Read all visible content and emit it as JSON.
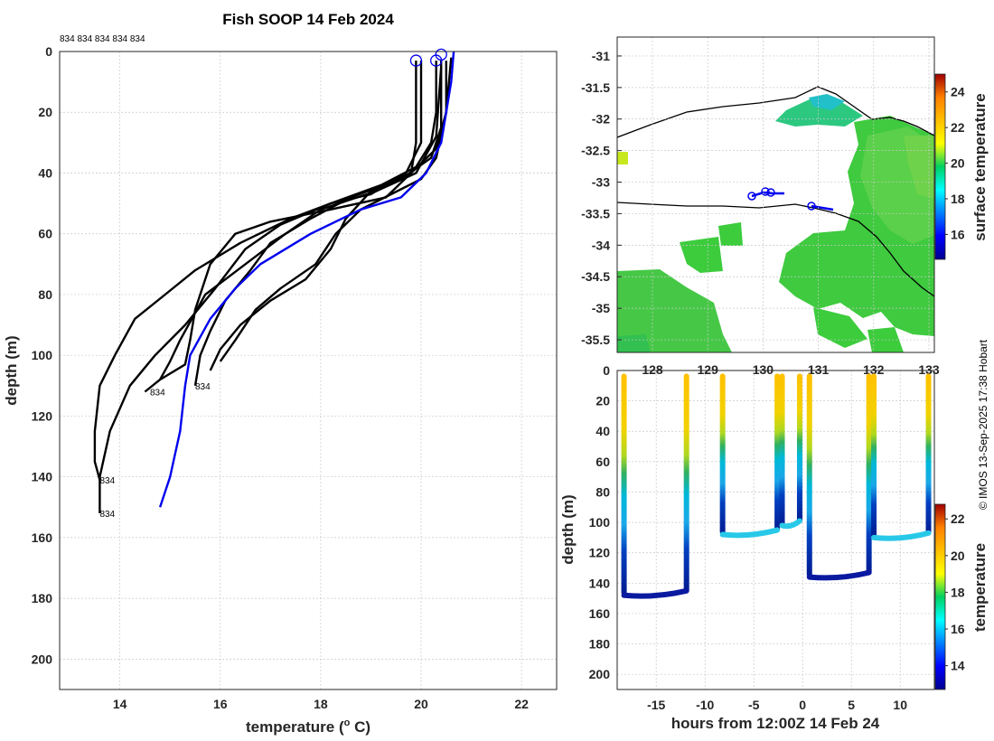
{
  "chart_data": [
    {
      "type": "line",
      "title": "Fish SOOP 14 Feb 2024",
      "xlabel": "temperature (",
      "xlabel_sup": "o",
      "xlabel_end": " C)",
      "ylabel": "depth (m)",
      "xlim": [
        12.8,
        22.7
      ],
      "ylim": [
        0,
        210
      ],
      "xticks": [
        14,
        16,
        18,
        20,
        22
      ],
      "yticks": [
        0,
        20,
        40,
        60,
        80,
        100,
        120,
        140,
        160,
        180,
        200
      ],
      "top_label": "834 834 834 834 834",
      "profile_label": "834",
      "profile_label_positions": [
        [
          14.6,
          112
        ],
        [
          15.5,
          110
        ],
        [
          13.6,
          141
        ],
        [
          13.6,
          152
        ]
      ],
      "markers": [
        [
          19.9,
          3
        ],
        [
          20.3,
          3
        ],
        [
          20.4,
          1
        ]
      ],
      "series": [
        {
          "name": "profile-1",
          "color": "#000000",
          "points": [
            [
              19.9,
              3
            ],
            [
              19.9,
              30
            ],
            [
              19.8,
              40
            ],
            [
              19.3,
              48
            ],
            [
              18.2,
              52
            ],
            [
              17.0,
              56
            ],
            [
              16.3,
              60
            ],
            [
              15.8,
              70
            ],
            [
              15.5,
              85
            ],
            [
              15.4,
              95
            ],
            [
              15.3,
              103
            ],
            [
              14.8,
              108
            ],
            [
              14.5,
              112
            ]
          ]
        },
        {
          "name": "profile-2",
          "color": "#000000",
          "points": [
            [
              20.0,
              3
            ],
            [
              20.0,
              30
            ],
            [
              19.7,
              40
            ],
            [
              19.0,
              47
            ],
            [
              18.2,
              50
            ],
            [
              17.4,
              55
            ],
            [
              16.4,
              63
            ],
            [
              15.5,
              72
            ],
            [
              14.9,
              80
            ],
            [
              14.3,
              88
            ],
            [
              13.9,
              100
            ],
            [
              13.6,
              110
            ],
            [
              13.5,
              125
            ],
            [
              13.5,
              135
            ],
            [
              13.6,
              141
            ]
          ]
        },
        {
          "name": "profile-3",
          "color": "#000000",
          "points": [
            [
              20.3,
              3
            ],
            [
              20.3,
              20
            ],
            [
              20.2,
              30
            ],
            [
              19.9,
              38
            ],
            [
              19.2,
              44
            ],
            [
              18.2,
              50
            ],
            [
              17.2,
              57
            ],
            [
              16.5,
              65
            ],
            [
              15.9,
              78
            ],
            [
              15.3,
              90
            ],
            [
              14.7,
              100
            ],
            [
              14.2,
              110
            ],
            [
              13.8,
              125
            ],
            [
              13.6,
              140
            ],
            [
              13.6,
              152
            ]
          ]
        },
        {
          "name": "profile-4",
          "color": "#000000",
          "points": [
            [
              20.4,
              3
            ],
            [
              20.4,
              25
            ],
            [
              20.2,
              35
            ],
            [
              19.6,
              42
            ],
            [
              18.6,
              48
            ],
            [
              17.8,
              55
            ],
            [
              17.0,
              63
            ],
            [
              16.6,
              72
            ],
            [
              16.1,
              82
            ],
            [
              15.8,
              92
            ],
            [
              15.6,
              100
            ],
            [
              15.5,
              110
            ]
          ]
        },
        {
          "name": "profile-5",
          "color": "#000000",
          "points": [
            [
              20.5,
              3
            ],
            [
              20.5,
              20
            ],
            [
              20.3,
              32
            ],
            [
              19.8,
              40
            ],
            [
              19.0,
              46
            ],
            [
              18.5,
              55
            ],
            [
              18.2,
              65
            ],
            [
              17.7,
              75
            ],
            [
              17.0,
              82
            ],
            [
              16.4,
              90
            ],
            [
              16.0,
              98
            ],
            [
              15.8,
              105
            ]
          ]
        },
        {
          "name": "profile-6",
          "color": "#000000",
          "points": [
            [
              20.6,
              2
            ],
            [
              20.5,
              20
            ],
            [
              20.3,
              35
            ],
            [
              20.0,
              42
            ],
            [
              19.4,
              47
            ],
            [
              18.8,
              52
            ],
            [
              18.3,
              60
            ],
            [
              17.9,
              70
            ],
            [
              17.2,
              78
            ],
            [
              16.7,
              85
            ],
            [
              16.3,
              95
            ],
            [
              16.0,
              102
            ]
          ]
        },
        {
          "name": "profile-7",
          "color": "#000000",
          "points": [
            [
              20.4,
              5
            ],
            [
              20.3,
              28
            ],
            [
              19.9,
              40
            ],
            [
              19.1,
              46
            ],
            [
              18.0,
              52
            ],
            [
              17.3,
              60
            ],
            [
              16.5,
              70
            ],
            [
              15.7,
              80
            ],
            [
              15.2,
              95
            ],
            [
              15.0,
              102
            ],
            [
              14.8,
              108
            ]
          ]
        },
        {
          "name": "mean",
          "color": "#0000ee",
          "points": [
            [
              20.65,
              0
            ],
            [
              20.6,
              10
            ],
            [
              20.5,
              20
            ],
            [
              20.4,
              30
            ],
            [
              20.1,
              40
            ],
            [
              19.6,
              48
            ],
            [
              18.8,
              52
            ],
            [
              17.8,
              60
            ],
            [
              16.8,
              70
            ],
            [
              16.3,
              78
            ],
            [
              15.8,
              88
            ],
            [
              15.4,
              100
            ],
            [
              15.3,
              110
            ],
            [
              15.2,
              125
            ],
            [
              15.0,
              140
            ],
            [
              14.8,
              150
            ]
          ]
        }
      ]
    },
    {
      "type": "heatmap",
      "title": "",
      "ylim": [
        -35.7,
        -30.7
      ],
      "yticks": [
        -31,
        -31.5,
        -32,
        -32.5,
        -33,
        -33.5,
        -34,
        -34.5,
        -35,
        -35.5
      ],
      "xticks": [
        "128",
        "129",
        "130",
        "131",
        "132",
        "133"
      ],
      "colorbar_label": "surface temperature",
      "colorbar_range": [
        14.6,
        25
      ],
      "colorbar_ticks": [
        16,
        18,
        20,
        22,
        24
      ],
      "track_markers": [
        [
          -33.15,
          0.36
        ],
        [
          -33.2,
          0.42
        ],
        [
          -33.3,
          0.61
        ]
      ]
    },
    {
      "type": "heatmap",
      "title": "",
      "xlabel": "hours from 12:00Z 14 Feb 24",
      "ylabel": "depth (m)",
      "xlim": [
        -19,
        13.5
      ],
      "ylim": [
        0,
        210
      ],
      "xticks": [
        -15,
        -10,
        -5,
        0,
        5,
        10
      ],
      "yticks": [
        0,
        20,
        40,
        60,
        80,
        100,
        120,
        140,
        160,
        180,
        200
      ],
      "colorbar_label": "temperature",
      "colorbar_range": [
        12.7,
        22.8
      ],
      "colorbar_ticks": [
        14,
        16,
        18,
        20,
        22
      ],
      "casts": [
        {
          "down_time": -18.3,
          "up_time": -11.9,
          "bottom": 148
        },
        {
          "down_time": -8.2,
          "up_time": -2.6,
          "bottom": 108
        },
        {
          "down_time": -2.1,
          "up_time": -0.3,
          "bottom": 102
        },
        {
          "down_time": 0.7,
          "up_time": 6.8,
          "bottom": 136
        },
        {
          "down_time": 7.3,
          "up_time": 12.9,
          "bottom": 110
        }
      ]
    }
  ],
  "footer": {
    "credit": "© IMOS 13-Sep-2025 17:38 Hobart"
  }
}
